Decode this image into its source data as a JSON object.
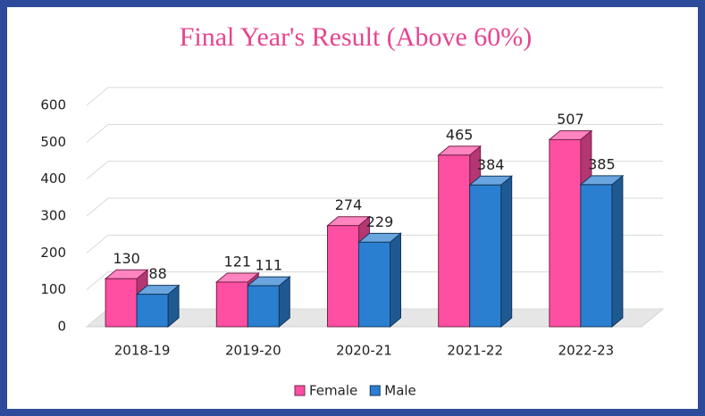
{
  "chart_data": {
    "type": "bar3d",
    "title": "Final Year's Result (Above 60%)",
    "categories": [
      "2018-19",
      "2019-20",
      "2020-21",
      "2021-22",
      "2022-23"
    ],
    "series": [
      {
        "name": "Female",
        "color": "#ff4fa3",
        "values": [
          130,
          121,
          274,
          465,
          507
        ]
      },
      {
        "name": "Male",
        "color": "#2b7fd1",
        "values": [
          88,
          111,
          229,
          384,
          385
        ]
      }
    ],
    "ylim": [
      0,
      600
    ],
    "yticks": [
      0,
      100,
      200,
      300,
      400,
      500,
      600
    ],
    "grid": true,
    "legend": "bottom"
  }
}
